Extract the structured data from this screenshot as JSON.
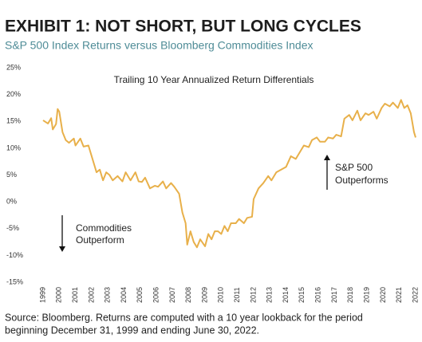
{
  "chart_data": {
    "type": "line",
    "title": "EXHIBIT 1: NOT SHORT, BUT LONG CYCLES",
    "subtitle": "S&P 500 Index Returns versus Bloomberg Commodities Index",
    "inner_title": "Trailing 10 Year Annualized Return Differentials",
    "annotations": [
      [
        "S&P 500",
        "Outperforms"
      ],
      [
        "Commodities",
        "Outperform"
      ]
    ],
    "source": [
      "Source: Bloomberg. Returns are computed with a 10 year lookback for the period",
      "beginning December 31, 1999 and ending June 30, 2022."
    ],
    "color": "#e8b04a",
    "x": [
      1999.0,
      1999.3,
      1999.5,
      1999.6,
      1999.8,
      1999.9,
      2000.0,
      2000.2,
      2000.4,
      2000.6,
      2000.9,
      2001.0,
      2001.3,
      2001.5,
      2001.8,
      2002.0,
      2002.3,
      2002.5,
      2002.7,
      2002.9,
      2003.1,
      2003.3,
      2003.6,
      2003.9,
      2004.1,
      2004.4,
      2004.7,
      2004.9,
      2005.1,
      2005.3,
      2005.6,
      2005.9,
      2006.1,
      2006.4,
      2006.6,
      2006.9,
      2007.1,
      2007.4,
      2007.6,
      2007.8,
      2007.9,
      2008.1,
      2008.3,
      2008.5,
      2008.7,
      2009.0,
      2009.2,
      2009.4,
      2009.6,
      2009.8,
      2010.0,
      2010.2,
      2010.4,
      2010.6,
      2010.9,
      2011.1,
      2011.4,
      2011.6,
      2011.9,
      2012.0,
      2012.3,
      2012.6,
      2012.9,
      2013.1,
      2013.4,
      2013.7,
      2014.0,
      2014.3,
      2014.6,
      2014.9,
      2015.1,
      2015.4,
      2015.6,
      2015.9,
      2016.1,
      2016.4,
      2016.6,
      2016.9,
      2017.1,
      2017.4,
      2017.6,
      2017.9,
      2018.1,
      2018.4,
      2018.6,
      2018.9,
      2019.1,
      2019.4,
      2019.6,
      2019.9,
      2020.1,
      2020.4,
      2020.6,
      2020.9,
      2021.1,
      2021.3,
      2021.5,
      2021.7,
      2021.9,
      2022.0
    ],
    "values": [
      15.2,
      14.6,
      15.6,
      13.5,
      14.5,
      17.3,
      16.8,
      13,
      11.5,
      11,
      11.8,
      10.5,
      11.8,
      10.3,
      10.5,
      8.5,
      5.5,
      6,
      4,
      5.5,
      5,
      4,
      4.8,
      3.8,
      5.5,
      4,
      5.5,
      3.8,
      3.7,
      4.5,
      2.5,
      3,
      2.8,
      3.8,
      2.5,
      3.5,
      2.8,
      1.5,
      -2,
      -4,
      -8,
      -5.5,
      -7.5,
      -8.5,
      -7,
      -8.3,
      -6,
      -7,
      -5.5,
      -5.5,
      -6,
      -4.5,
      -5.5,
      -4,
      -4,
      -3.2,
      -4,
      -3,
      -2.8,
      0.5,
      2.5,
      3.5,
      4.8,
      4,
      5.5,
      6,
      6.5,
      8.5,
      8,
      9.5,
      10.5,
      10.2,
      11.5,
      12,
      11.2,
      11.2,
      12,
      11.8,
      12.5,
      12.2,
      15.5,
      16.2,
      15.2,
      17,
      15.2,
      16.5,
      16.2,
      16.8,
      15.5,
      17.5,
      18.3,
      17.8,
      18.5,
      17.5,
      19,
      17.5,
      18,
      16.5,
      13,
      12
    ],
    "xlim": [
      1999,
      2022
    ],
    "xticks": [
      1999,
      2000,
      2001,
      2002,
      2003,
      2004,
      2005,
      2006,
      2007,
      2008,
      2009,
      2010,
      2011,
      2012,
      2013,
      2014,
      2015,
      2016,
      2017,
      2018,
      2019,
      2020,
      2021,
      2022
    ],
    "ylim": [
      -15,
      25
    ],
    "yticks": [
      {
        "value": -15,
        "label": "-15%"
      },
      {
        "value": -10,
        "label": "-10%"
      },
      {
        "value": -5,
        "label": "-5%"
      },
      {
        "value": 0,
        "label": "0%"
      },
      {
        "value": 5,
        "label": "5%"
      },
      {
        "value": 10,
        "label": "10%"
      },
      {
        "value": 15,
        "label": "15%"
      },
      {
        "value": 20,
        "label": "20%"
      },
      {
        "value": 25,
        "label": "25%"
      }
    ],
    "grid": false
  }
}
